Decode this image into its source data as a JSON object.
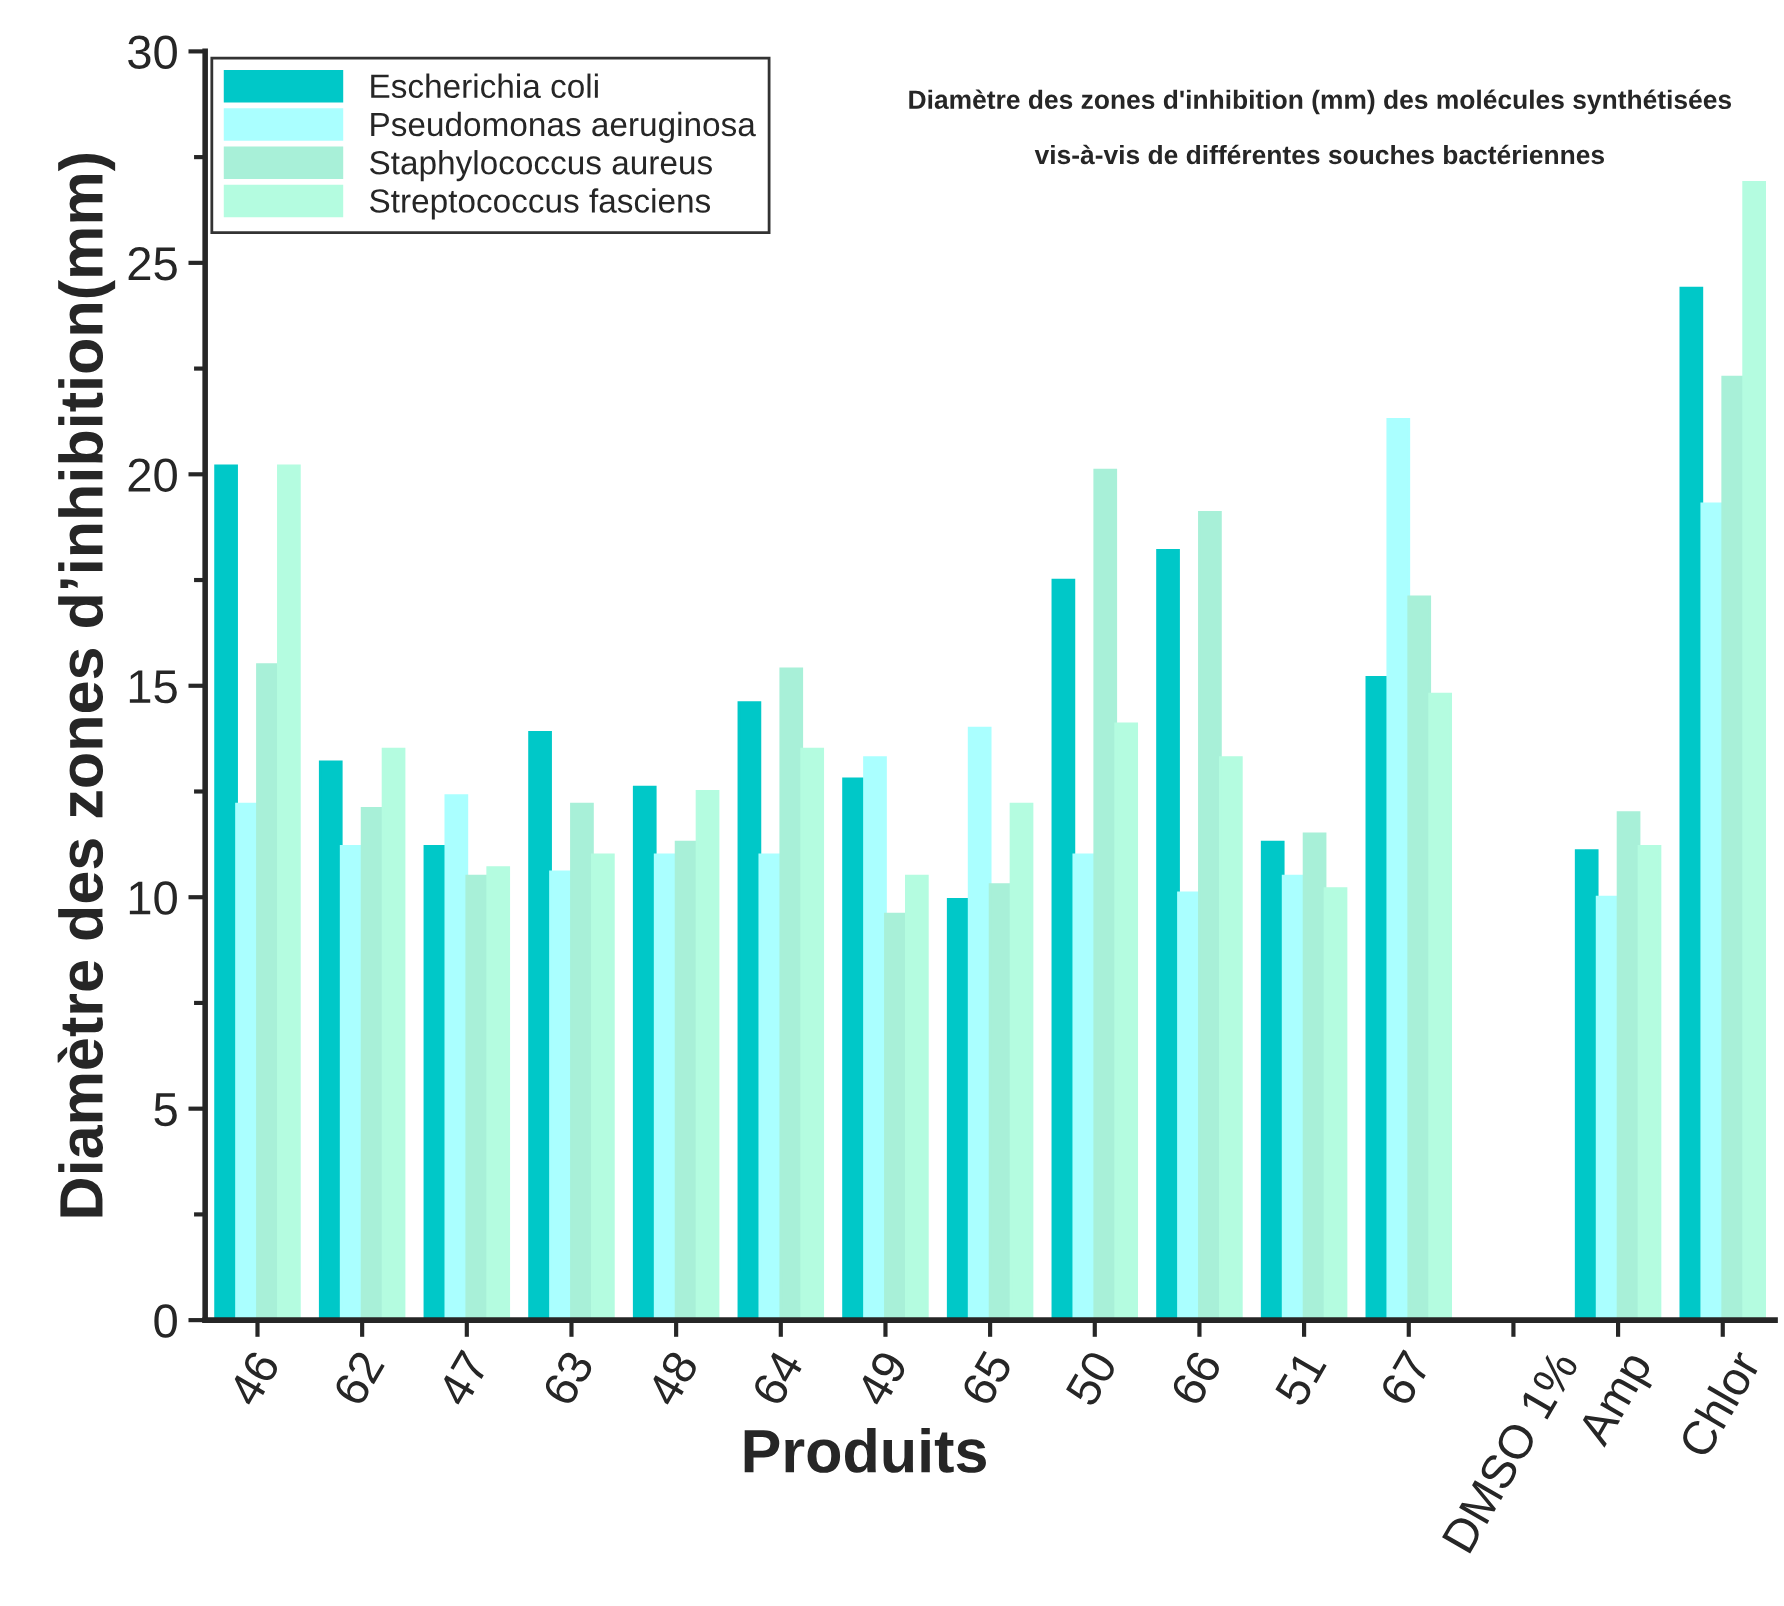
{
  "chart_data": {
    "type": "bar",
    "title": "Diamètre des zones d'inhibition (mm) des molécules synthétisées\nvis-à-vis de différentes souches bactériennes",
    "xlabel": "Produits",
    "ylabel": "Diamètre des zones d’inhibition(mm)",
    "categories": [
      "46",
      "62",
      "47",
      "63",
      "48",
      "64",
      "49",
      "65",
      "50",
      "66",
      "51",
      "67",
      "DMSO 1%",
      "Amp",
      "Chlor"
    ],
    "series": [
      {
        "name": "Escherichia coli",
        "color": "#00c8c8",
        "values": [
          20.2,
          13.2,
          11.2,
          13.9,
          12.6,
          14.6,
          12.8,
          9.95,
          17.5,
          18.2,
          11.3,
          15.2,
          0,
          11.1,
          24.4
        ]
      },
      {
        "name": "Pseudomonas aeruginosa",
        "color": "#aaffff",
        "values": [
          12.2,
          11.2,
          12.4,
          10.6,
          11.0,
          11.0,
          13.3,
          14.0,
          11.0,
          10.1,
          10.5,
          21.3,
          0,
          10.0,
          19.3
        ]
      },
      {
        "name": "Staphylococcus aureus",
        "color": "#a8f0d8",
        "values": [
          15.5,
          12.1,
          10.5,
          12.2,
          11.3,
          15.4,
          9.6,
          10.3,
          20.1,
          19.1,
          11.5,
          17.1,
          0,
          12.0,
          22.3
        ]
      },
      {
        "name": "Streptococcus fasciens",
        "color": "#b4fce0",
        "values": [
          20.2,
          13.5,
          10.7,
          11.0,
          12.5,
          13.5,
          10.5,
          12.2,
          14.1,
          13.3,
          10.2,
          14.8,
          0,
          11.2,
          26.9
        ]
      }
    ],
    "ylim": [
      0,
      30
    ],
    "yticks": [
      0,
      5,
      10,
      15,
      20,
      25,
      30
    ],
    "grid": false,
    "legend": "top left"
  }
}
